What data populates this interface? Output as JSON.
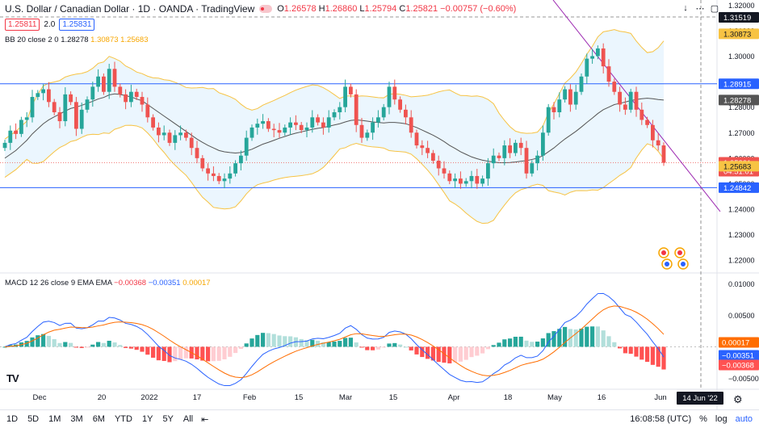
{
  "header": {
    "title": "U.S. Dollar / Canadian Dollar · 1D · OANDA · TradingView",
    "o_label": "O",
    "o": "1.26578",
    "h_label": "H",
    "h": "1.26860",
    "l_label": "L",
    "l": "1.25794",
    "c_label": "C",
    "c": "1.25821",
    "change": "−0.00757 (−0.60%)",
    "sell": "1.25811",
    "spread": "2.0",
    "buy": "1.25831"
  },
  "bb_legend": {
    "name": "BB 20 close 2 0",
    "basis": "1.28278",
    "upper": "1.30873",
    "lower": "1.25683"
  },
  "macd_legend": {
    "name": "MACD 12 26 close 9 EMA EMA",
    "hist": "−0.00368",
    "macd": "−0.00351",
    "signal": "0.00017"
  },
  "price_axis": {
    "ticks": [
      "1.32000",
      "1.31000",
      "1.30000",
      "1.29000",
      "1.28000",
      "1.27000",
      "1.26000",
      "1.25000",
      "1.24000",
      "1.23000",
      "1.22000"
    ]
  },
  "macd_axis": {
    "ticks": [
      "0.01000",
      "0.00500",
      "−0.00500"
    ]
  },
  "price_labels": {
    "crosshair": "1.31519",
    "upper": "1.30873",
    "resistance": "1.28915",
    "basis": "1.28278",
    "last": "1.25821",
    "countdown": "04:51:01",
    "lower": "1.25683",
    "support": "1.24842"
  },
  "macd_labels": {
    "signal": "0.00017",
    "macd": "−0.00351",
    "hist": "−0.00368"
  },
  "time_axis": {
    "ticks": [
      "Dec",
      "20",
      "2022",
      "17",
      "Feb",
      "15",
      "Mar",
      "15",
      "Apr",
      "18",
      "May",
      "16",
      "Jun"
    ],
    "crosshair_date": "14 Jun '22"
  },
  "bottom_bar": {
    "timeframes": [
      "1D",
      "5D",
      "1M",
      "3M",
      "6M",
      "YTD",
      "1Y",
      "5Y",
      "All"
    ],
    "clock": "16:08:58 (UTC)",
    "pct": "%",
    "log": "log",
    "auto": "auto"
  },
  "colors": {
    "up": "#26a69a",
    "down": "#ef5350",
    "bb_band": "#f7c343",
    "bb_fill": "#e3f2fd",
    "basis": "#555555",
    "hline": "#2962ff",
    "trend": "#9c27b0",
    "macd": "#2962ff",
    "signal": "#ff6d00",
    "hist_up_strong": "#26a69a",
    "hist_up_weak": "#b2dfdb",
    "hist_dn_strong": "#ff5252",
    "hist_dn_weak": "#ffcdd2"
  },
  "chart_data": [
    {
      "type": "candlestick",
      "title": "U.S. Dollar / Canadian Dollar · 1D · OANDA",
      "ylim": [
        1.215,
        1.322
      ],
      "horizontal_lines": [
        1.28915,
        1.24842
      ],
      "last_close": 1.25821,
      "close_series": [
        1.266,
        1.2708,
        1.2695,
        1.275,
        1.276,
        1.284,
        1.2855,
        1.287,
        1.282,
        1.278,
        1.2745,
        1.285,
        1.282,
        1.2715,
        1.279,
        1.283,
        1.288,
        1.292,
        1.286,
        1.295,
        1.288,
        1.285,
        1.282,
        1.286,
        1.284,
        1.281,
        1.276,
        1.272,
        1.269,
        1.27,
        1.266,
        1.269,
        1.27,
        1.268,
        1.264,
        1.26,
        1.256,
        1.254,
        1.253,
        1.251,
        1.252,
        1.254,
        1.258,
        1.261,
        1.268,
        1.272,
        1.2735,
        1.2745,
        1.2715,
        1.271,
        1.27,
        1.272,
        1.274,
        1.273,
        1.271,
        1.272,
        1.276,
        1.274,
        1.272,
        1.276,
        1.278,
        1.28,
        1.288,
        1.285,
        1.273,
        1.268,
        1.27,
        1.274,
        1.276,
        1.28,
        1.288,
        1.283,
        1.279,
        1.276,
        1.27,
        1.265,
        1.264,
        1.262,
        1.259,
        1.256,
        1.254,
        1.251,
        1.252,
        1.25,
        1.251,
        1.253,
        1.25,
        1.252,
        1.258,
        1.261,
        1.26,
        1.265,
        1.262,
        1.266,
        1.264,
        1.254,
        1.258,
        1.261,
        1.27,
        1.28,
        1.278,
        1.283,
        1.287,
        1.281,
        1.286,
        1.292,
        1.299,
        1.3,
        1.303,
        1.296,
        1.29,
        1.286,
        1.281,
        1.279,
        1.286,
        1.279,
        1.275,
        1.273,
        1.267,
        1.265,
        1.2582
      ],
      "bb_basis": [
        1.26,
        1.2615,
        1.263,
        1.265,
        1.267,
        1.2695,
        1.2715,
        1.2735,
        1.275,
        1.2762,
        1.2773,
        1.2785,
        1.2795,
        1.28,
        1.2807,
        1.2815,
        1.2823,
        1.2832,
        1.2838,
        1.2848,
        1.2852,
        1.285,
        1.2845,
        1.284,
        1.2832,
        1.2825,
        1.281,
        1.2795,
        1.278,
        1.2765,
        1.275,
        1.2735,
        1.272,
        1.2705,
        1.269,
        1.2675,
        1.2662,
        1.265,
        1.264,
        1.263,
        1.2625,
        1.2622,
        1.262,
        1.2622,
        1.2628,
        1.2635,
        1.2645,
        1.2655,
        1.2662,
        1.267,
        1.2678,
        1.2685,
        1.2692,
        1.2698,
        1.2703,
        1.2708,
        1.2713,
        1.2717,
        1.272,
        1.2725,
        1.273,
        1.2735,
        1.2742,
        1.2748,
        1.275,
        1.2748,
        1.2745,
        1.2742,
        1.274,
        1.2738,
        1.274,
        1.274,
        1.2738,
        1.2735,
        1.2728,
        1.272,
        1.271,
        1.27,
        1.269,
        1.2678,
        1.2665,
        1.265,
        1.2638,
        1.2625,
        1.2615,
        1.2605,
        1.2598,
        1.2592,
        1.2588,
        1.2585,
        1.2582,
        1.2582,
        1.2583,
        1.2585,
        1.2588,
        1.259,
        1.2595,
        1.26,
        1.261,
        1.2625,
        1.264,
        1.2658,
        1.2675,
        1.269,
        1.2705,
        1.2722,
        1.274,
        1.2757,
        1.2775,
        1.279,
        1.28,
        1.281,
        1.2815,
        1.282,
        1.2826,
        1.283,
        1.2833,
        1.2835,
        1.2833,
        1.283,
        1.2828
      ]
    },
    {
      "type": "macd",
      "title": "MACD 12 26 close 9 EMA EMA",
      "ylim": [
        -0.0065,
        0.0115
      ],
      "macd_last": -0.00351,
      "signal_last": 0.00017,
      "hist_last": -0.00368
    }
  ]
}
